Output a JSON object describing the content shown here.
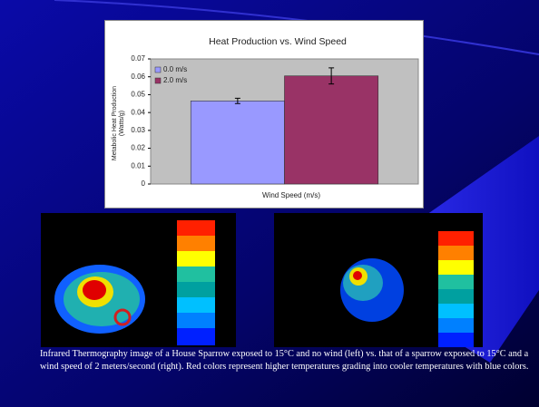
{
  "chart_data": {
    "type": "bar",
    "title": "Heat Production vs. Wind Speed",
    "x_label": "Wind Speed (m/s)",
    "y_label": "Metabolic Heat Production (Watts/g)",
    "categories": [
      null
    ],
    "series": [
      {
        "name": "0.0 m/s",
        "color": "#9999ff",
        "values": [
          0.0465
        ],
        "errors": [
          0.0015
        ]
      },
      {
        "name": "2.0 m/s",
        "color": "#993366",
        "values": [
          0.0605
        ],
        "errors": [
          0.0045
        ]
      }
    ],
    "ylim": [
      0,
      0.07
    ],
    "yticks": [
      0,
      0.01,
      0.02,
      0.03,
      0.04,
      0.05,
      0.06,
      0.07
    ],
    "grid": false,
    "legend": "upper left",
    "plot_background": "#c0c0c0"
  },
  "caption": "Infrared Thermography image of a House Sparrow exposed to 15°C and no wind (left) vs. that of a sparrow exposed to 15°C and a wind speed of 2 meters/second (right).  Red colors represent higher temperatures grading into cooler temperatures with blue colors."
}
